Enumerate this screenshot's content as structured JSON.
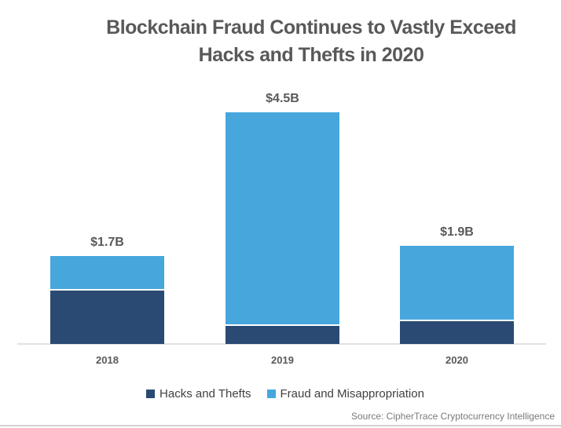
{
  "title": {
    "line1": "Blockchain Fraud Continues to Vastly Exceed",
    "line2": "Hacks and Thefts in 2020"
  },
  "source": "Source: CipherTrace Cryptocurrency Intelligence",
  "legend": {
    "items": [
      {
        "label": "Hacks and Thefts",
        "color": "#2a4a73"
      },
      {
        "label": "Fraud and Misappropriation",
        "color": "#47a7dd"
      }
    ]
  },
  "colors": {
    "hacks_navy": "#2a4a73",
    "fraud_light_blue": "#47a7dd",
    "title_gray": "#595959",
    "axis_line_gray": "#e2e2e2"
  },
  "chart_data": {
    "type": "bar",
    "stacked": true,
    "title": "Blockchain Fraud Continues to Vastly Exceed Hacks and Thefts in 2020",
    "unit": "USD billions",
    "categories": [
      "2018",
      "2019",
      "2020"
    ],
    "series": [
      {
        "name": "Hacks and Thefts",
        "color": "#2a4a73",
        "values": [
          1.05,
          0.35,
          0.45
        ]
      },
      {
        "name": "Fraud and Misappropriation",
        "color": "#47a7dd",
        "values": [
          0.65,
          4.15,
          1.45
        ]
      }
    ],
    "totals": [
      1.7,
      4.5,
      1.9
    ],
    "total_labels": [
      "$1.7B",
      "$4.5B",
      "$1.9B"
    ],
    "xlabel": "",
    "ylabel": "",
    "ylim": [
      0,
      4.7
    ],
    "grid": false,
    "y_axis_shown": false,
    "legend_position": "bottom"
  }
}
